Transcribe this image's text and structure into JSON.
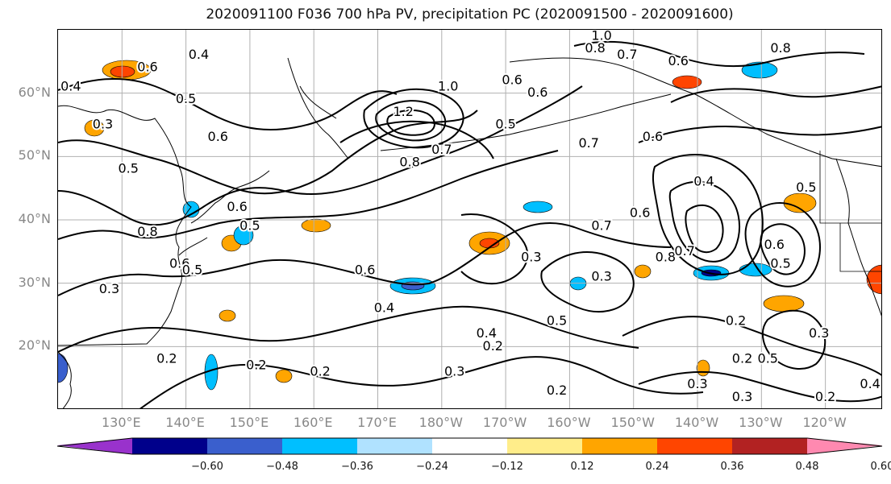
{
  "title": "2020091100 F036 700 hPa PV, precipitation PC (2020091500 - 2020091600)",
  "map": {
    "lat_labels": [
      {
        "text": "60°N",
        "lat": 60
      },
      {
        "text": "50°N",
        "lat": 50
      },
      {
        "text": "40°N",
        "lat": 40
      },
      {
        "text": "30°N",
        "lat": 30
      },
      {
        "text": "20°N",
        "lat": 20
      }
    ],
    "lon_labels": [
      {
        "text": "130°E",
        "lon": 130
      },
      {
        "text": "140°E",
        "lon": 140
      },
      {
        "text": "150°E",
        "lon": 150
      },
      {
        "text": "160°E",
        "lon": 160
      },
      {
        "text": "170°E",
        "lon": 170
      },
      {
        "text": "180°W",
        "lon": 180
      },
      {
        "text": "170°W",
        "lon": 190
      },
      {
        "text": "160°W",
        "lon": 200
      },
      {
        "text": "150°W",
        "lon": 210
      },
      {
        "text": "140°W",
        "lon": 220
      },
      {
        "text": "130°W",
        "lon": 230
      },
      {
        "text": "120°W",
        "lon": 240
      }
    ],
    "extent": {
      "lon_min": 120,
      "lon_max": 249,
      "lat_min": 10,
      "lat_max": 70
    },
    "contour_labels": [
      {
        "text": "0.4",
        "lon": 122,
        "lat": 61
      },
      {
        "text": "0.6",
        "lon": 134,
        "lat": 64
      },
      {
        "text": "0.4",
        "lon": 142,
        "lat": 66
      },
      {
        "text": "0.5",
        "lon": 140,
        "lat": 59
      },
      {
        "text": "0.3",
        "lon": 127,
        "lat": 55
      },
      {
        "text": "0.6",
        "lon": 145,
        "lat": 53
      },
      {
        "text": "0.5",
        "lon": 131,
        "lat": 48
      },
      {
        "text": "0.6",
        "lon": 148,
        "lat": 42
      },
      {
        "text": "0.5",
        "lon": 150,
        "lat": 39
      },
      {
        "text": "0.8",
        "lon": 134,
        "lat": 38
      },
      {
        "text": "0.6",
        "lon": 139,
        "lat": 33
      },
      {
        "text": "0.5",
        "lon": 141,
        "lat": 32
      },
      {
        "text": "0.3",
        "lon": 128,
        "lat": 29
      },
      {
        "text": "0.2",
        "lon": 137,
        "lat": 18
      },
      {
        "text": "0.2",
        "lon": 151,
        "lat": 17
      },
      {
        "text": "0.2",
        "lon": 161,
        "lat": 16
      },
      {
        "text": "1.2",
        "lon": 174,
        "lat": 57
      },
      {
        "text": "1.0",
        "lon": 181,
        "lat": 61
      },
      {
        "text": "0.8",
        "lon": 175,
        "lat": 49
      },
      {
        "text": "0.7",
        "lon": 180,
        "lat": 51
      },
      {
        "text": "0.5",
        "lon": 190,
        "lat": 55
      },
      {
        "text": "0.6",
        "lon": 191,
        "lat": 62
      },
      {
        "text": "0.6",
        "lon": 195,
        "lat": 60
      },
      {
        "text": "0.6",
        "lon": 168,
        "lat": 32
      },
      {
        "text": "0.4",
        "lon": 171,
        "lat": 26
      },
      {
        "text": "0.3",
        "lon": 194,
        "lat": 34
      },
      {
        "text": "0.4",
        "lon": 187,
        "lat": 22
      },
      {
        "text": "0.2",
        "lon": 188,
        "lat": 20
      },
      {
        "text": "0.5",
        "lon": 198,
        "lat": 24
      },
      {
        "text": "0.3",
        "lon": 205,
        "lat": 31
      },
      {
        "text": "0.3",
        "lon": 182,
        "lat": 16
      },
      {
        "text": "0.2",
        "lon": 198,
        "lat": 13
      },
      {
        "text": "1.0",
        "lon": 205,
        "lat": 69
      },
      {
        "text": "0.8",
        "lon": 204,
        "lat": 67
      },
      {
        "text": "0.7",
        "lon": 209,
        "lat": 66
      },
      {
        "text": "0.6",
        "lon": 217,
        "lat": 65
      },
      {
        "text": "0.8",
        "lon": 233,
        "lat": 67
      },
      {
        "text": "0.7",
        "lon": 203,
        "lat": 52
      },
      {
        "text": "0.6",
        "lon": 213,
        "lat": 53
      },
      {
        "text": "0.4",
        "lon": 221,
        "lat": 46
      },
      {
        "text": "0.5",
        "lon": 237,
        "lat": 45
      },
      {
        "text": "0.7",
        "lon": 205,
        "lat": 39
      },
      {
        "text": "0.6",
        "lon": 211,
        "lat": 41
      },
      {
        "text": "0.8",
        "lon": 215,
        "lat": 34
      },
      {
        "text": "0.7",
        "lon": 218,
        "lat": 35
      },
      {
        "text": "0.6",
        "lon": 232,
        "lat": 36
      },
      {
        "text": "0.5",
        "lon": 233,
        "lat": 33
      },
      {
        "text": "0.2",
        "lon": 226,
        "lat": 24
      },
      {
        "text": "0.3",
        "lon": 239,
        "lat": 22
      },
      {
        "text": "0.2",
        "lon": 227,
        "lat": 18
      },
      {
        "text": "0.5",
        "lon": 231,
        "lat": 18
      },
      {
        "text": "0.3",
        "lon": 220,
        "lat": 14
      },
      {
        "text": "0.3",
        "lon": 227,
        "lat": 12
      },
      {
        "text": "0.2",
        "lon": 240,
        "lat": 12
      },
      {
        "text": "0.4",
        "lon": 247,
        "lat": 14
      }
    ],
    "colors": {
      "contour": "#000000",
      "grid": "#b0b0b0",
      "coast": "#000000"
    }
  },
  "colorbar": {
    "tick_labels": [
      "−0.60",
      "−0.48",
      "−0.36",
      "−0.24",
      "−0.12",
      "0.12",
      "0.24",
      "0.36",
      "0.48",
      "0.60"
    ],
    "colors": [
      "#9932cc",
      "#00008b",
      "#3a5fcd",
      "#00bfff",
      "#b0e2ff",
      "#ffffff",
      "#ffed8a",
      "#ffa500",
      "#ff4500",
      "#b22222",
      "#ff89b0"
    ]
  }
}
